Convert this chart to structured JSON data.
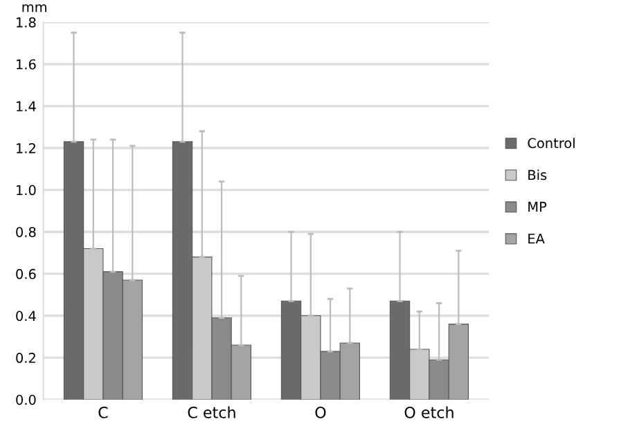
{
  "chart_data": {
    "type": "bar",
    "ylabel": "mm",
    "categories": [
      "C",
      "C etch",
      "O",
      "O etch"
    ],
    "series": [
      {
        "name": "Control",
        "color": "#6b6b6b",
        "values": [
          1.23,
          1.23,
          0.47,
          0.47
        ],
        "errors": [
          [
            1.23,
            1.75
          ],
          [
            1.23,
            1.75
          ],
          [
            0.47,
            0.8
          ],
          [
            0.47,
            0.8
          ]
        ]
      },
      {
        "name": "Bis",
        "color": "#c9c9c9",
        "values": [
          0.72,
          0.68,
          0.4,
          0.24
        ],
        "errors": [
          [
            0.72,
            1.24
          ],
          [
            0.68,
            1.28
          ],
          [
            0.4,
            0.79
          ],
          [
            0.24,
            0.42
          ]
        ]
      },
      {
        "name": "MP",
        "color": "#8a8a8a",
        "values": [
          0.61,
          0.39,
          0.23,
          0.19
        ],
        "errors": [
          [
            0.61,
            1.24
          ],
          [
            0.39,
            1.04
          ],
          [
            0.23,
            0.48
          ],
          [
            0.19,
            0.46
          ]
        ]
      },
      {
        "name": "EA",
        "color": "#a3a3a3",
        "values": [
          0.57,
          0.26,
          0.27,
          0.36
        ],
        "errors": [
          [
            0.57,
            1.21
          ],
          [
            0.26,
            0.59
          ],
          [
            0.27,
            0.53
          ],
          [
            0.36,
            0.71
          ]
        ]
      }
    ],
    "ylim": [
      0,
      1.8
    ],
    "yticks": [
      {
        "value": 0,
        "label": "0.0"
      },
      {
        "value": 0.2,
        "label": "0.2"
      },
      {
        "value": 0.4,
        "label": "0.4"
      },
      {
        "value": 0.6,
        "label": "0.6"
      },
      {
        "value": 0.8,
        "label": "0.8"
      },
      {
        "value": 1.0,
        "label": "1.0"
      },
      {
        "value": 1.2,
        "label": "1.2"
      },
      {
        "value": 1.4,
        "label": "1.4"
      },
      {
        "value": 1.6,
        "label": "1.6"
      },
      {
        "value": 1.8,
        "label": "1.8"
      }
    ],
    "grid": "y",
    "legend": "right"
  }
}
